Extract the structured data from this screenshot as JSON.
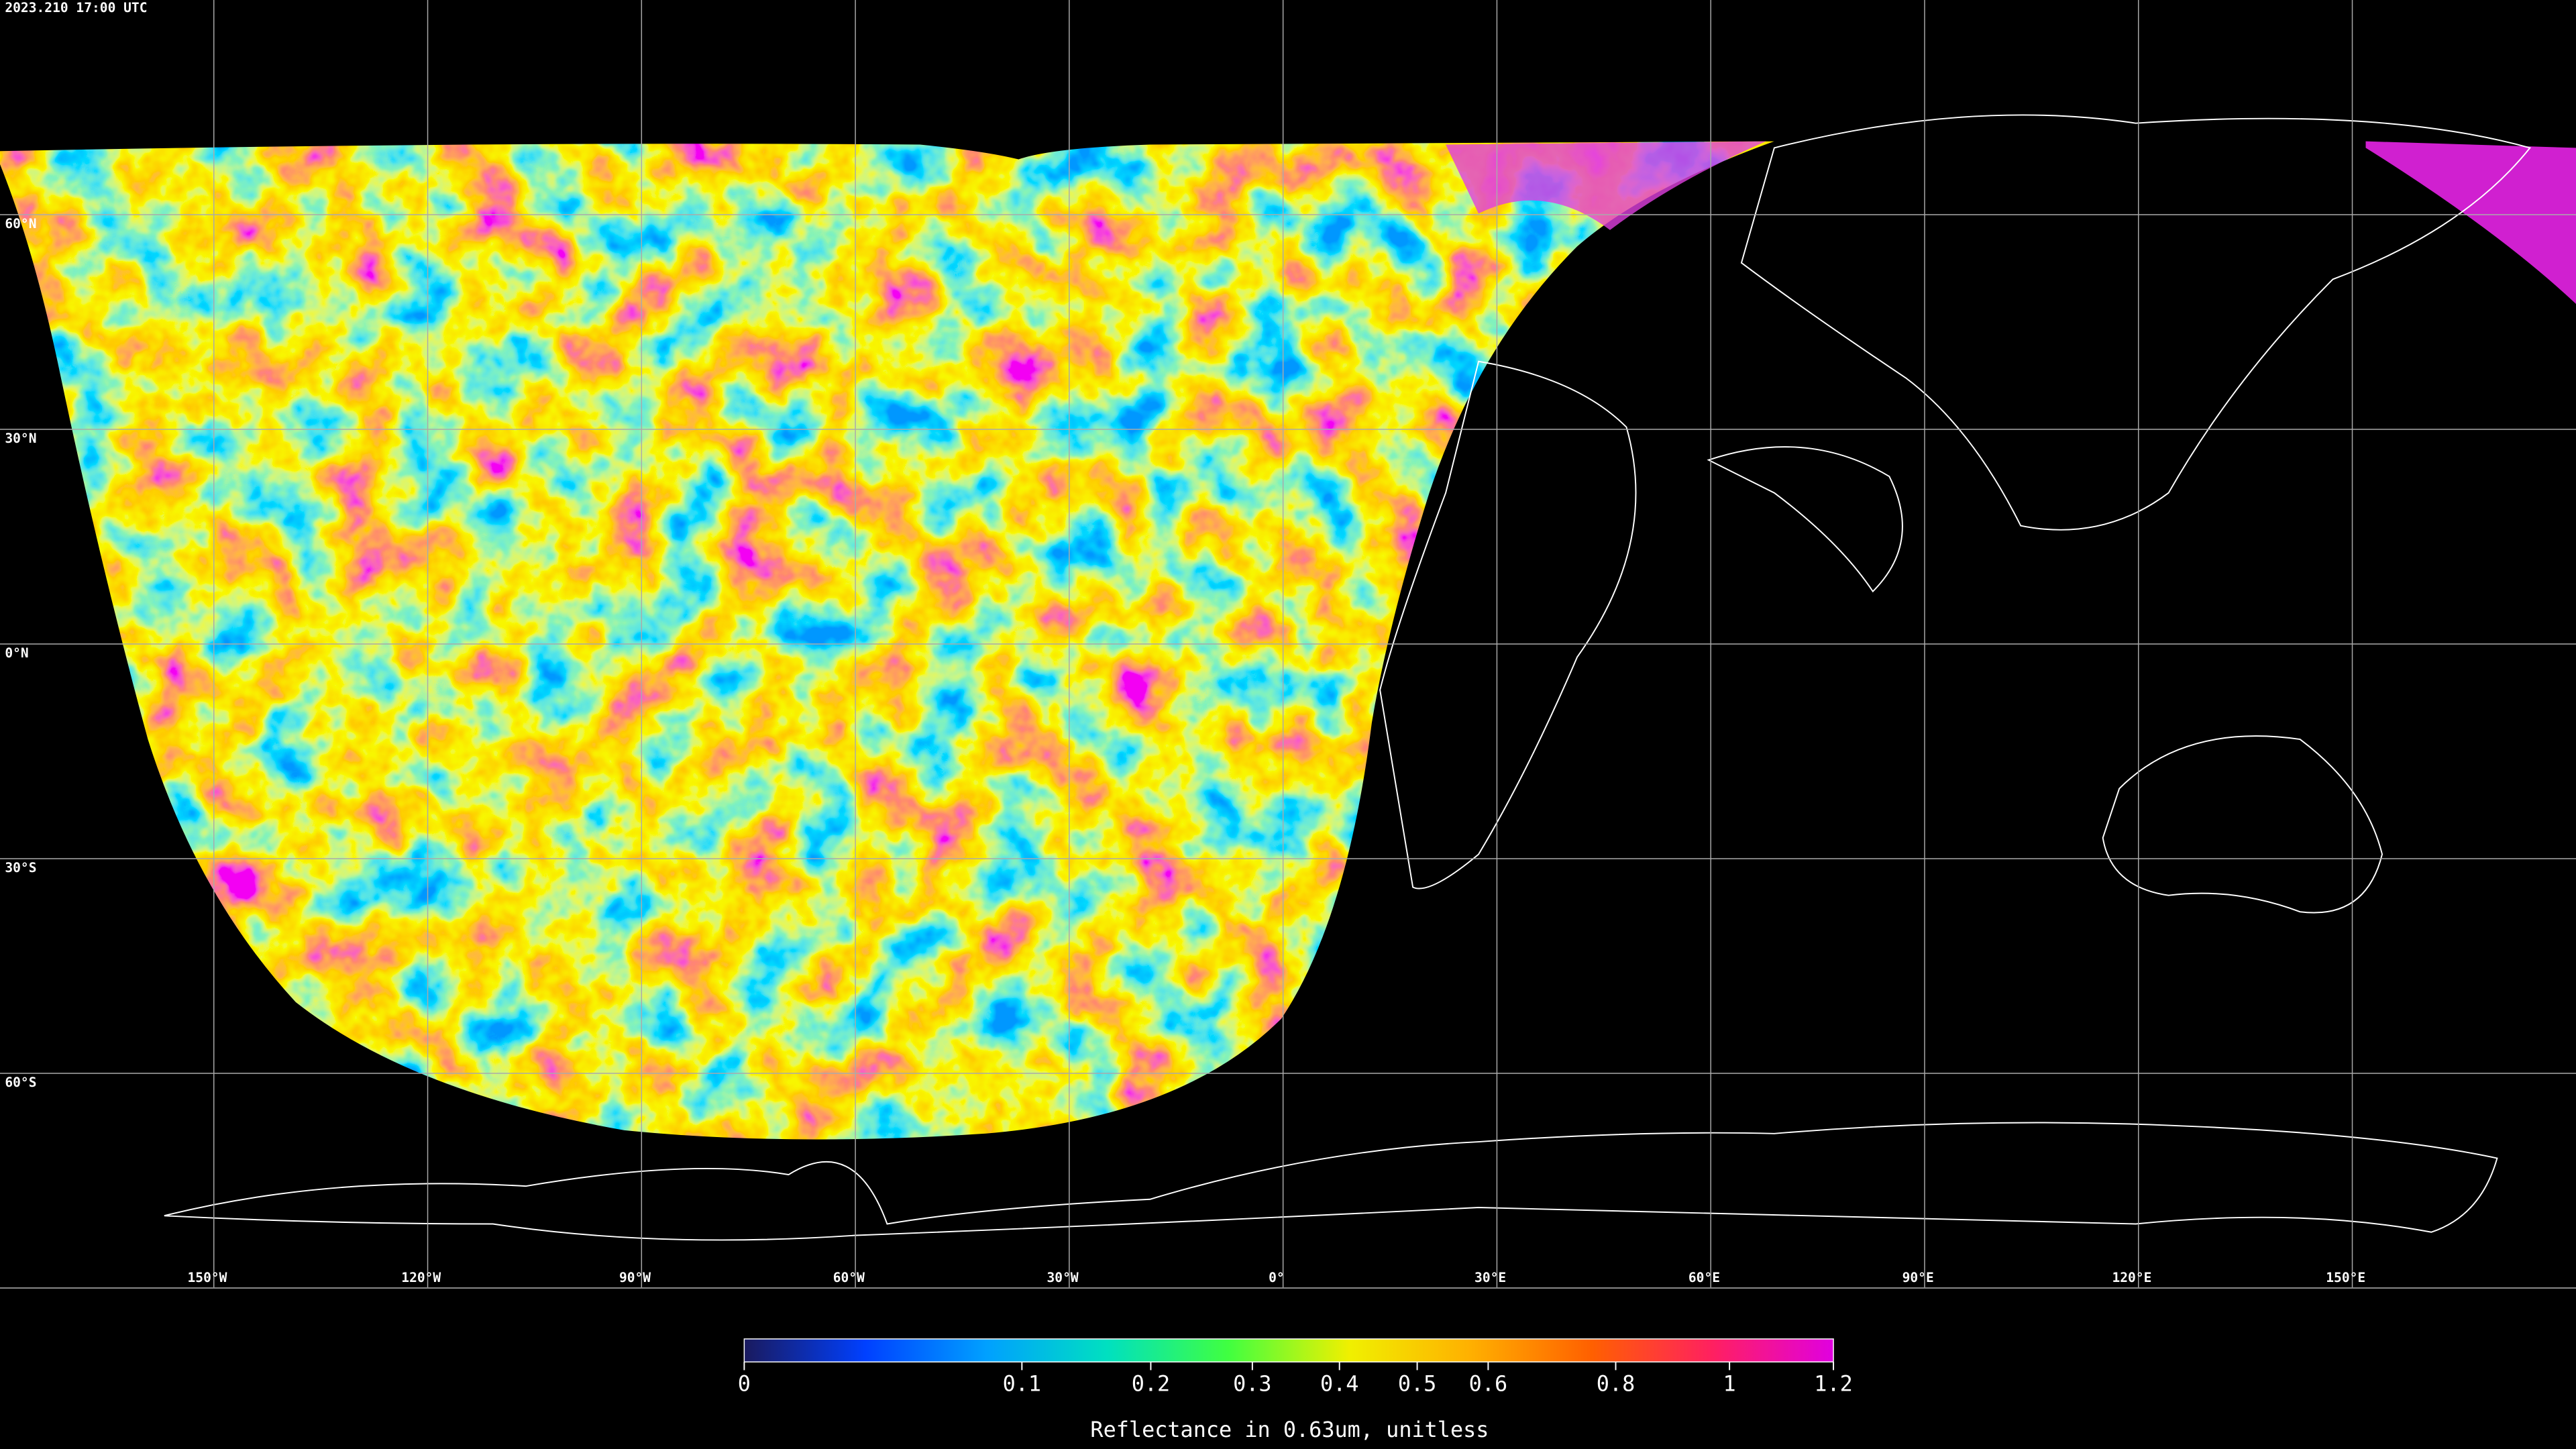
{
  "header": {
    "timestamp": "2023.210 17:00 UTC"
  },
  "map": {
    "lon_range": [
      -180,
      180
    ],
    "lat_range": [
      -90,
      90
    ],
    "latitudes": [
      {
        "value": 60,
        "label": "60°N"
      },
      {
        "value": 30,
        "label": "30°N"
      },
      {
        "value": 0,
        "label": "0°N"
      },
      {
        "value": -30,
        "label": "30°S"
      },
      {
        "value": -60,
        "label": "60°S"
      }
    ],
    "longitudes": [
      {
        "value": -150,
        "label": "150°W"
      },
      {
        "value": -120,
        "label": "120°W"
      },
      {
        "value": -90,
        "label": "90°W"
      },
      {
        "value": -60,
        "label": "60°W"
      },
      {
        "value": -30,
        "label": "30°W"
      },
      {
        "value": 0,
        "label": "0°"
      },
      {
        "value": 30,
        "label": "30°E"
      },
      {
        "value": 60,
        "label": "60°E"
      },
      {
        "value": 90,
        "label": "90°E"
      },
      {
        "value": 120,
        "label": "120°E"
      },
      {
        "value": 150,
        "label": "150°E"
      }
    ]
  },
  "colorbar": {
    "lim": [
      0,
      1.2
    ],
    "ticks": [
      0,
      0.1,
      0.2,
      0.3,
      0.4,
      0.5,
      0.6,
      0.8,
      1,
      1.2
    ],
    "label": "Reflectance in 0.63um, unitless",
    "colors": [
      "#1a1a5e",
      "#0040ff",
      "#00a0ff",
      "#00e0c0",
      "#40ff40",
      "#f0f000",
      "#ffb000",
      "#ff6000",
      "#ff2060",
      "#e000e0"
    ]
  }
}
